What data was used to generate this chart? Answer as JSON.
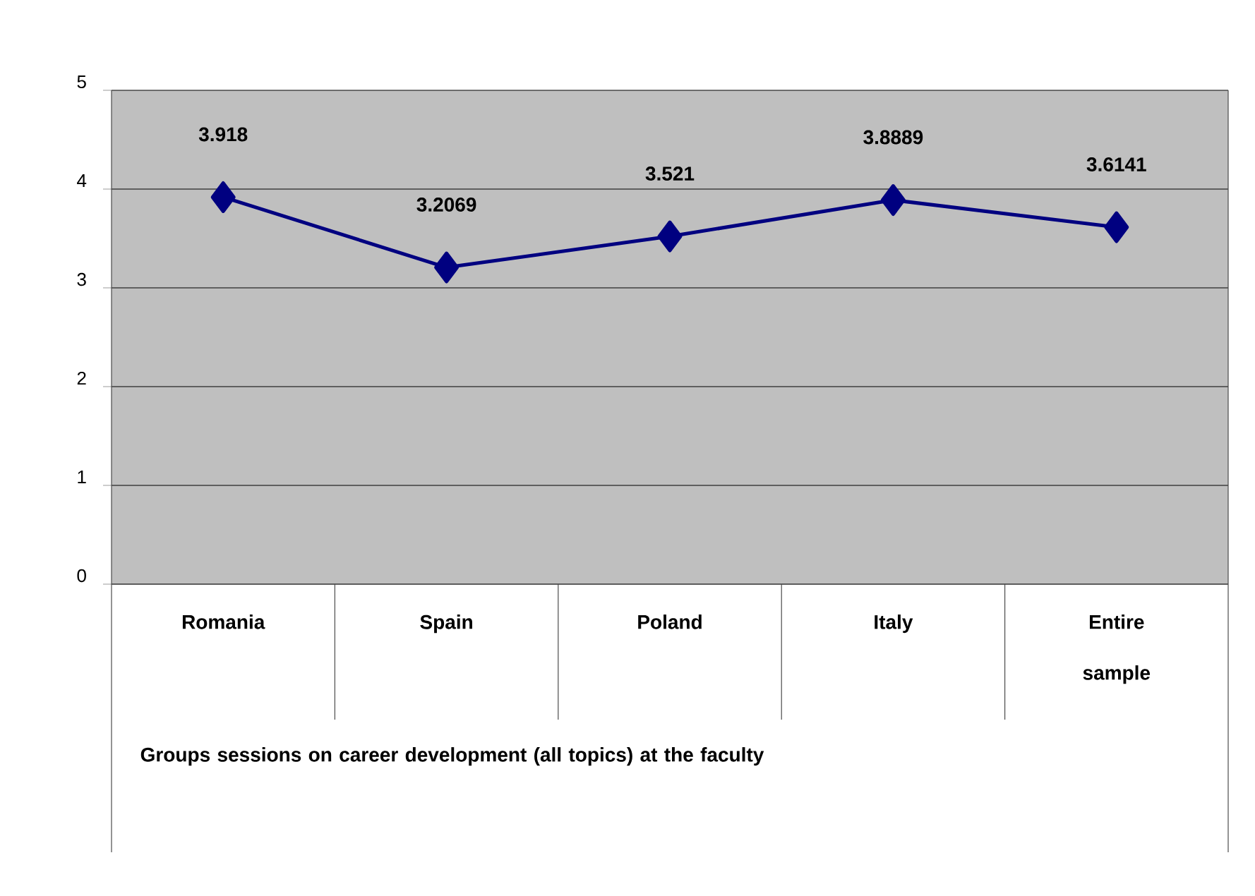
{
  "chart_data": {
    "type": "line",
    "categories": [
      "Romania",
      "Spain",
      "Poland",
      "Italy",
      "Entire sample"
    ],
    "annotations": [
      "Groups sessions on career development (all topics) at the faculty"
    ],
    "series": [
      {
        "color": "#000080",
        "values": [
          3.918,
          3.2069,
          3.521,
          3.8889,
          3.6141
        ]
      }
    ],
    "ylim": [
      0,
      5
    ],
    "yticks": [
      0,
      1,
      2,
      3,
      4,
      5
    ],
    "grid": "y",
    "marker": "diamond",
    "line_style": "solid",
    "data_labels": true
  }
}
